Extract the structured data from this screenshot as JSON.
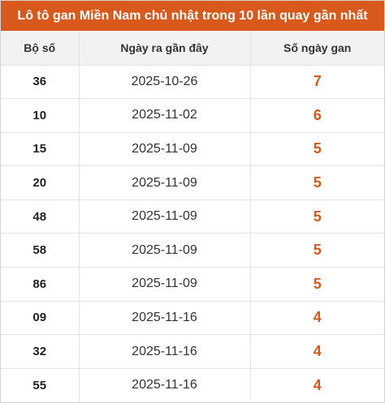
{
  "title": "Lô tô gan Miền Nam chủ nhật trong 10 lần quay gần nhất",
  "colors": {
    "accent": "#d9581b",
    "header_bg": "#f2f2f2",
    "border": "#e4e4e4"
  },
  "table": {
    "headers": [
      "Bộ số",
      "Ngày ra gần đây",
      "Số ngày gan"
    ],
    "rows": [
      {
        "number": "36",
        "date": "2025-10-26",
        "days": "7"
      },
      {
        "number": "10",
        "date": "2025-11-02",
        "days": "6"
      },
      {
        "number": "15",
        "date": "2025-11-09",
        "days": "5"
      },
      {
        "number": "20",
        "date": "2025-11-09",
        "days": "5"
      },
      {
        "number": "48",
        "date": "2025-11-09",
        "days": "5"
      },
      {
        "number": "58",
        "date": "2025-11-09",
        "days": "5"
      },
      {
        "number": "86",
        "date": "2025-11-09",
        "days": "5"
      },
      {
        "number": "09",
        "date": "2025-11-16",
        "days": "4"
      },
      {
        "number": "32",
        "date": "2025-11-16",
        "days": "4"
      },
      {
        "number": "55",
        "date": "2025-11-16",
        "days": "4"
      }
    ]
  }
}
